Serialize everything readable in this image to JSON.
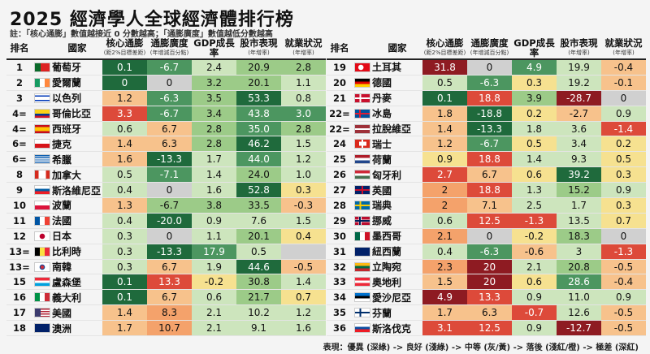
{
  "title": "2025 經濟學人全球經濟體排行榜",
  "note": "註：「核心通膨」數值越接近 0 分數越高；「通膨廣度」數值越低分數越高",
  "headers": {
    "rank": "排名",
    "country": "國家",
    "core": "核心通膨",
    "core_sub": "(距2%目標差距)",
    "breadth": "通膨廣度",
    "breadth_sub": "(年增減百分點)",
    "gdp": "GDP成長率",
    "stock": "股市表現",
    "stock_sub": "(年增率)",
    "jobs": "就業狀況",
    "jobs_sub": "(年增率)"
  },
  "colors": {
    "dg": "#1f6a3c",
    "mg": "#4c9660",
    "lg": "#9ccb88",
    "pg": "#cde5bd",
    "gy": "#d0d0d0",
    "yl": "#f6e190",
    "lo": "#f7c28c",
    "or": "#f4a26b",
    "rd": "#dd4a3a",
    "dr": "#8e1b22"
  },
  "chart_data": {
    "type": "table",
    "columns": [
      "排名",
      "國家",
      "核心通膨",
      "通膨廣度",
      "GDP成長率",
      "股市表現",
      "就業狀況"
    ],
    "left": [
      {
        "rank": "1",
        "country": "葡萄牙",
        "flag": "pt",
        "values": [
          "0.1",
          "-6.7",
          "2.4",
          "20.9",
          "2.8"
        ],
        "levels": [
          "dg",
          "mg",
          "pg",
          "lg",
          "lg"
        ]
      },
      {
        "rank": "2",
        "country": "愛爾蘭",
        "flag": "ie",
        "values": [
          "0",
          "0",
          "3.2",
          "20.1",
          "1.1"
        ],
        "levels": [
          "dg",
          "gy",
          "lg",
          "lg",
          "pg"
        ]
      },
      {
        "rank": "3",
        "country": "以色列",
        "flag": "il",
        "values": [
          "1.2",
          "-6.3",
          "3.5",
          "53.3",
          "0.8"
        ],
        "levels": [
          "lo",
          "mg",
          "lg",
          "dg",
          "pg"
        ]
      },
      {
        "rank": "4=",
        "country": "哥倫比亞",
        "flag": "co",
        "values": [
          "3.3",
          "-6.7",
          "3.4",
          "43.8",
          "3.0"
        ],
        "levels": [
          "rd",
          "mg",
          "lg",
          "mg",
          "mg"
        ]
      },
      {
        "rank": "4=",
        "country": "西班牙",
        "flag": "es",
        "values": [
          "0.6",
          "6.7",
          "2.8",
          "35.0",
          "2.8"
        ],
        "levels": [
          "pg",
          "lo",
          "lg",
          "mg",
          "lg"
        ]
      },
      {
        "rank": "6=",
        "country": "捷克",
        "flag": "cz",
        "values": [
          "1.4",
          "6.3",
          "2.8",
          "46.2",
          "1.5"
        ],
        "levels": [
          "lo",
          "lo",
          "lg",
          "dg",
          "pg"
        ]
      },
      {
        "rank": "6=",
        "country": "希臘",
        "flag": "gr",
        "values": [
          "1.6",
          "-13.3",
          "1.7",
          "44.0",
          "1.2"
        ],
        "levels": [
          "lo",
          "dg",
          "pg",
          "mg",
          "pg"
        ]
      },
      {
        "rank": "8",
        "country": "加拿大",
        "flag": "ca",
        "values": [
          "0.5",
          "-7.1",
          "1.4",
          "24.0",
          "1.0"
        ],
        "levels": [
          "pg",
          "mg",
          "pg",
          "lg",
          "pg"
        ]
      },
      {
        "rank": "9",
        "country": "斯洛維尼亞",
        "flag": "si",
        "values": [
          "0.4",
          "0",
          "1.6",
          "52.8",
          "0.3"
        ],
        "levels": [
          "pg",
          "gy",
          "pg",
          "dg",
          "yl"
        ]
      },
      {
        "rank": "10",
        "country": "波蘭",
        "flag": "pl",
        "values": [
          "1.3",
          "-6.7",
          "3.8",
          "33.5",
          "-0.3"
        ],
        "levels": [
          "lo",
          "lg",
          "lg",
          "lg",
          "lo"
        ]
      },
      {
        "rank": "11",
        "country": "法國",
        "flag": "fr",
        "values": [
          "0.4",
          "-20.0",
          "0.9",
          "7.6",
          "1.5"
        ],
        "levels": [
          "pg",
          "dg",
          "pg",
          "pg",
          "pg"
        ]
      },
      {
        "rank": "12",
        "country": "日本",
        "flag": "jp",
        "values": [
          "0.3",
          "0",
          "1.1",
          "20.1",
          "0.4"
        ],
        "levels": [
          "pg",
          "gy",
          "pg",
          "lg",
          "yl"
        ]
      },
      {
        "rank": "13=",
        "country": "比利時",
        "flag": "be",
        "values": [
          "0.3",
          "-13.3",
          "17.9",
          "0.5",
          ""
        ],
        "levels": [
          "pg",
          "dg",
          "mg",
          "pg",
          "gy"
        ]
      },
      {
        "rank": "13=",
        "country": "南韓",
        "flag": "kr",
        "values": [
          "0.3",
          "6.7",
          "1.9",
          "44.6",
          "-0.5"
        ],
        "levels": [
          "pg",
          "lo",
          "pg",
          "dg",
          "lo"
        ]
      },
      {
        "rank": "15",
        "country": "盧森堡",
        "flag": "lu",
        "values": [
          "0.1",
          "13.3",
          "-0.2",
          "30.8",
          "1.4"
        ],
        "levels": [
          "dg",
          "rd",
          "yl",
          "lg",
          "pg"
        ]
      },
      {
        "rank": "16",
        "country": "義大利",
        "flag": "it",
        "values": [
          "0.1",
          "6.7",
          "0.6",
          "21.7",
          "0.7"
        ],
        "levels": [
          "dg",
          "lo",
          "pg",
          "lg",
          "yl"
        ]
      },
      {
        "rank": "17",
        "country": "美國",
        "flag": "us",
        "values": [
          "1.4",
          "8.3",
          "2.1",
          "10.2",
          "1.2"
        ],
        "levels": [
          "lo",
          "or",
          "pg",
          "pg",
          "pg"
        ]
      },
      {
        "rank": "18",
        "country": "澳洲",
        "flag": "au",
        "values": [
          "1.7",
          "10.7",
          "2.1",
          "9.1",
          "1.6"
        ],
        "levels": [
          "lo",
          "or",
          "pg",
          "pg",
          "pg"
        ]
      }
    ],
    "right": [
      {
        "rank": "19",
        "country": "土耳其",
        "flag": "tr",
        "values": [
          "31.8",
          "0",
          "4.9",
          "19.9",
          "-0.4"
        ],
        "levels": [
          "dr",
          "gy",
          "mg",
          "pg",
          "lo"
        ]
      },
      {
        "rank": "20",
        "country": "德國",
        "flag": "de",
        "values": [
          "0.5",
          "-6.3",
          "0.3",
          "19.2",
          "-0.1"
        ],
        "levels": [
          "pg",
          "mg",
          "yl",
          "pg",
          "lo"
        ]
      },
      {
        "rank": "21",
        "country": "丹麥",
        "flag": "dk",
        "values": [
          "0.1",
          "18.8",
          "3.9",
          "-28.7",
          "0"
        ],
        "levels": [
          "dg",
          "rd",
          "lg",
          "dr",
          "gy"
        ]
      },
      {
        "rank": "22=",
        "country": "冰島",
        "flag": "is",
        "values": [
          "1.8",
          "-18.8",
          "0.2",
          "-2.7",
          "0.9"
        ],
        "levels": [
          "lo",
          "dg",
          "yl",
          "lo",
          "pg"
        ]
      },
      {
        "rank": "22=",
        "country": "拉脫維亞",
        "flag": "lv",
        "values": [
          "1.4",
          "-13.3",
          "1.8",
          "3.6",
          "-1.4"
        ],
        "levels": [
          "lo",
          "dg",
          "pg",
          "pg",
          "rd"
        ]
      },
      {
        "rank": "24",
        "country": "瑞士",
        "flag": "ch",
        "values": [
          "1.2",
          "-6.7",
          "0.5",
          "3.4",
          "0.2"
        ],
        "levels": [
          "lo",
          "mg",
          "yl",
          "pg",
          "yl"
        ]
      },
      {
        "rank": "25",
        "country": "荷蘭",
        "flag": "nl",
        "values": [
          "0.9",
          "18.8",
          "1.4",
          "9.3",
          "0.5"
        ],
        "levels": [
          "yl",
          "rd",
          "pg",
          "pg",
          "yl"
        ]
      },
      {
        "rank": "26",
        "country": "匈牙利",
        "flag": "hu",
        "values": [
          "2.7",
          "6.7",
          "0.6",
          "39.2",
          "0.3"
        ],
        "levels": [
          "rd",
          "lo",
          "yl",
          "dg",
          "yl"
        ]
      },
      {
        "rank": "27",
        "country": "英國",
        "flag": "gb",
        "values": [
          "2",
          "18.8",
          "1.3",
          "15.2",
          "0.9"
        ],
        "levels": [
          "or",
          "rd",
          "pg",
          "lg",
          "pg"
        ]
      },
      {
        "rank": "28",
        "country": "瑞典",
        "flag": "se",
        "values": [
          "2",
          "7.1",
          "2.5",
          "1.7",
          "0.3"
        ],
        "levels": [
          "or",
          "lo",
          "pg",
          "pg",
          "yl"
        ]
      },
      {
        "rank": "29",
        "country": "挪威",
        "flag": "no",
        "values": [
          "0.6",
          "12.5",
          "-1.3",
          "13.5",
          "0.7"
        ],
        "levels": [
          "pg",
          "rd",
          "rd",
          "pg",
          "yl"
        ]
      },
      {
        "rank": "30",
        "country": "墨西哥",
        "flag": "mx",
        "values": [
          "2.1",
          "0",
          "-0.2",
          "18.3",
          "0"
        ],
        "levels": [
          "or",
          "gy",
          "yl",
          "lg",
          "gy"
        ]
      },
      {
        "rank": "31",
        "country": "紐西蘭",
        "flag": "nz",
        "values": [
          "0.4",
          "-6.3",
          "-0.6",
          "3",
          "-1.3"
        ],
        "levels": [
          "pg",
          "mg",
          "lo",
          "pg",
          "rd"
        ]
      },
      {
        "rank": "32",
        "country": "立陶宛",
        "flag": "lt",
        "values": [
          "2.3",
          "20",
          "2.1",
          "20.8",
          "-0.5"
        ],
        "levels": [
          "or",
          "dr",
          "pg",
          "lg",
          "lo"
        ]
      },
      {
        "rank": "33",
        "country": "奧地利",
        "flag": "at",
        "values": [
          "1.5",
          "20",
          "0.6",
          "28.6",
          "-0.4"
        ],
        "levels": [
          "lo",
          "dr",
          "yl",
          "mg",
          "lo"
        ]
      },
      {
        "rank": "34",
        "country": "愛沙尼亞",
        "flag": "ee",
        "values": [
          "4.9",
          "13.3",
          "0.9",
          "11.0",
          "0.9"
        ],
        "levels": [
          "dr",
          "rd",
          "pg",
          "pg",
          "pg"
        ]
      },
      {
        "rank": "35",
        "country": "芬蘭",
        "flag": "fi",
        "values": [
          "1.7",
          "6.3",
          "-0.7",
          "12.6",
          "-0.5"
        ],
        "levels": [
          "lo",
          "lo",
          "rd",
          "pg",
          "lo"
        ]
      },
      {
        "rank": "36",
        "country": "斯洛伐克",
        "flag": "sk",
        "values": [
          "3.1",
          "12.5",
          "0.9",
          "-12.7",
          "-0.5"
        ],
        "levels": [
          "rd",
          "rd",
          "pg",
          "dr",
          "lo"
        ]
      }
    ]
  },
  "legend": "表現：優異 (深綠) -> 良好 (淺綠) -> 中等 (灰/黃) -> 落後 (淺紅/橙) -> 極差 (深紅)"
}
